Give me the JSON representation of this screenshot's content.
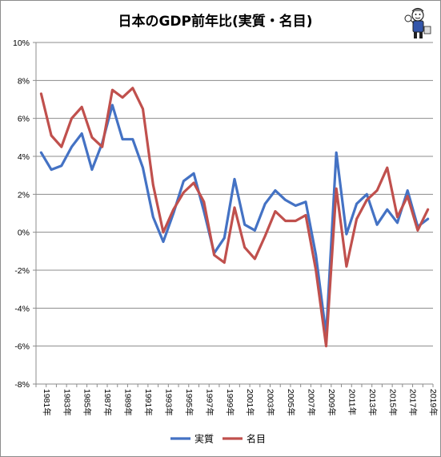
{
  "chart_data": {
    "type": "line",
    "title": "日本のGDP前年比(実質・名目)",
    "xlabel": "",
    "ylabel": "",
    "ylim": [
      -8,
      10
    ],
    "y_ticks": [
      -8,
      -6,
      -4,
      -2,
      0,
      2,
      4,
      6,
      8,
      10
    ],
    "y_tick_labels": [
      "-8%",
      "-6%",
      "-4%",
      "-2%",
      "0%",
      "2%",
      "4%",
      "6%",
      "8%",
      "10%"
    ],
    "x": [
      1981,
      1982,
      1983,
      1984,
      1985,
      1986,
      1987,
      1988,
      1989,
      1990,
      1991,
      1992,
      1993,
      1994,
      1995,
      1996,
      1997,
      1998,
      1999,
      2000,
      2001,
      2002,
      2003,
      2004,
      2005,
      2006,
      2007,
      2008,
      2009,
      2010,
      2011,
      2012,
      2013,
      2014,
      2015,
      2016,
      2017,
      2018,
      2019
    ],
    "x_tick_labels": [
      "1981年",
      "1983年",
      "1985年",
      "1987年",
      "1989年",
      "1991年",
      "1993年",
      "1995年",
      "1997年",
      "1999年",
      "2001年",
      "2003年",
      "2005年",
      "2007年",
      "2009年",
      "2011年",
      "2013年",
      "2015年",
      "2017年",
      "2019年"
    ],
    "grid": "horizontal",
    "legend": "bottom",
    "series": [
      {
        "name": "実質",
        "color": "#4472C4",
        "values": [
          4.2,
          3.3,
          3.5,
          4.5,
          5.2,
          3.3,
          4.7,
          6.7,
          4.9,
          4.9,
          3.4,
          0.8,
          -0.5,
          1.0,
          2.7,
          3.1,
          1.1,
          -1.1,
          -0.3,
          2.8,
          0.4,
          0.1,
          1.5,
          2.2,
          1.7,
          1.4,
          1.6,
          -1.2,
          -5.4,
          4.2,
          -0.1,
          1.5,
          2.0,
          0.4,
          1.2,
          0.5,
          2.2,
          0.3,
          0.7
        ]
      },
      {
        "name": "名目",
        "color": "#C0504D",
        "values": [
          7.3,
          5.1,
          4.5,
          6.0,
          6.6,
          5.0,
          4.5,
          7.5,
          7.1,
          7.6,
          6.5,
          2.5,
          0.0,
          1.2,
          2.1,
          2.6,
          1.6,
          -1.2,
          -1.6,
          1.3,
          -0.8,
          -1.4,
          -0.2,
          1.1,
          0.6,
          0.6,
          0.9,
          -2.0,
          -6.0,
          2.3,
          -1.8,
          0.7,
          1.7,
          2.2,
          3.4,
          0.8,
          1.9,
          0.1,
          1.2
        ]
      }
    ]
  }
}
